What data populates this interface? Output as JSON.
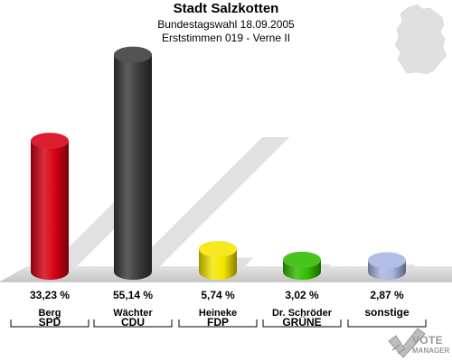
{
  "header": {
    "title": "Stadt Salzkotten",
    "subtitle1": "Bundestagswahl 18.09.2005",
    "subtitle2": "Erststimmen 019 - Verne II"
  },
  "logo": {
    "line1": "VOTE",
    "line2": "MANAGER",
    "icon": "vote-check-icon"
  },
  "map_icon": "germany-map-icon",
  "chart_data": {
    "type": "bar",
    "title": "",
    "ylim": [
      0,
      60
    ],
    "categories": [
      "Berg",
      "Wächter",
      "Heineke",
      "Dr. Schröder",
      ""
    ],
    "parties": [
      "SPD",
      "CDU",
      "FDP",
      "GRÜNE",
      "sonstige"
    ],
    "values": [
      33.23,
      55.14,
      5.74,
      3.02,
      2.87
    ],
    "value_labels": [
      "33,23 %",
      "55,14 %",
      "5,74 %",
      "3,02 %",
      "2,87 %"
    ],
    "colors": [
      "#d50014",
      "#3b3b3b",
      "#f5e600",
      "#33bb00",
      "#a7b5df"
    ]
  }
}
